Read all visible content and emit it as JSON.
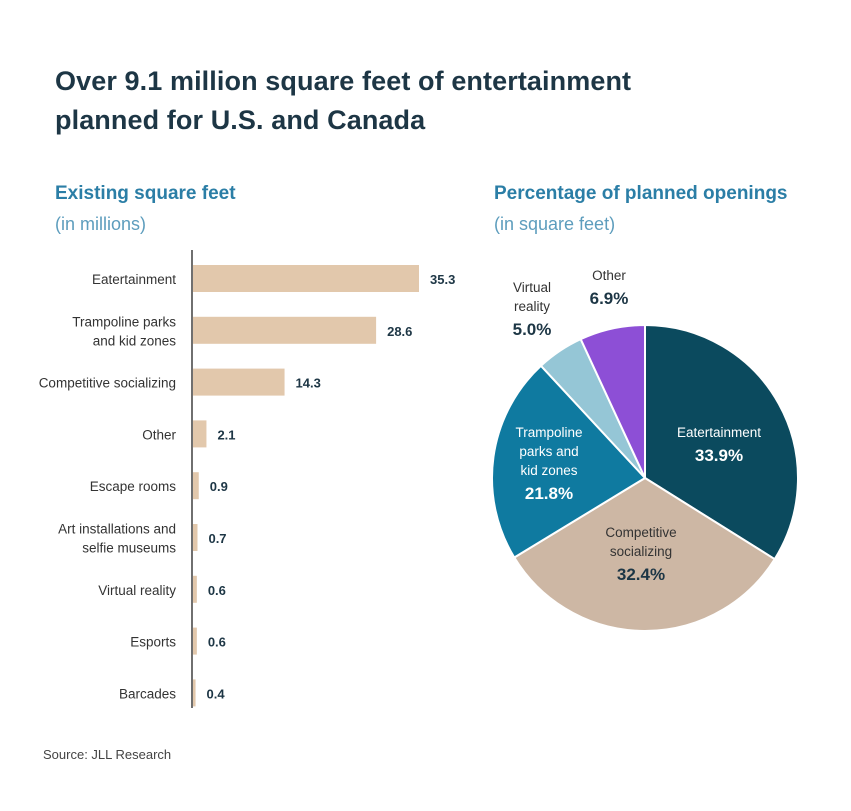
{
  "title": "Over 9.1 million square feet of entertainment planned for U.S. and Canada",
  "source": "Source: JLL Research",
  "colors": {
    "bar": "#e2c8ac",
    "value_label": "#1d3645",
    "title": "#1d3645",
    "subtitle": "#2b7ea6"
  },
  "chart_data": [
    {
      "type": "bar",
      "orientation": "horizontal",
      "title": "Existing square feet",
      "subtitle": "(in millions)",
      "categories": [
        [
          "Eatertainment"
        ],
        [
          "Trampoline parks",
          "and kid zones"
        ],
        [
          "Competitive socializing"
        ],
        [
          "Other"
        ],
        [
          "Escape rooms"
        ],
        [
          "Art installations and",
          "selfie museums"
        ],
        [
          "Virtual reality"
        ],
        [
          "Esports"
        ],
        [
          "Barcades"
        ]
      ],
      "values": [
        35.3,
        28.6,
        14.3,
        2.1,
        0.9,
        0.7,
        0.6,
        0.6,
        0.4
      ],
      "value_labels": [
        "35.3",
        "28.6",
        "14.3",
        "2.1",
        "0.9",
        "0.7",
        "0.6",
        "0.6",
        "0.4"
      ],
      "grid": false
    },
    {
      "type": "pie",
      "title": "Percentage of planned openings",
      "subtitle": "(in square feet)",
      "slices": [
        {
          "label": [
            "Eatertainment"
          ],
          "value": 33.9,
          "value_label": "33.9%",
          "color": "#0b4a5e"
        },
        {
          "label": [
            "Competitive",
            "socializing"
          ],
          "value": 32.4,
          "value_label": "32.4%",
          "color": "#cdb7a4"
        },
        {
          "label": [
            "Trampoline",
            "parks and",
            "kid zones"
          ],
          "value": 21.8,
          "value_label": "21.8%",
          "color": "#0f7aa0"
        },
        {
          "label": [
            "Virtual",
            "reality"
          ],
          "value": 5.0,
          "value_label": "5.0%",
          "color": "#95c6d6"
        },
        {
          "label": [
            "Other"
          ],
          "value": 6.9,
          "value_label": "6.9%",
          "color": "#8d4fd6"
        }
      ]
    }
  ]
}
